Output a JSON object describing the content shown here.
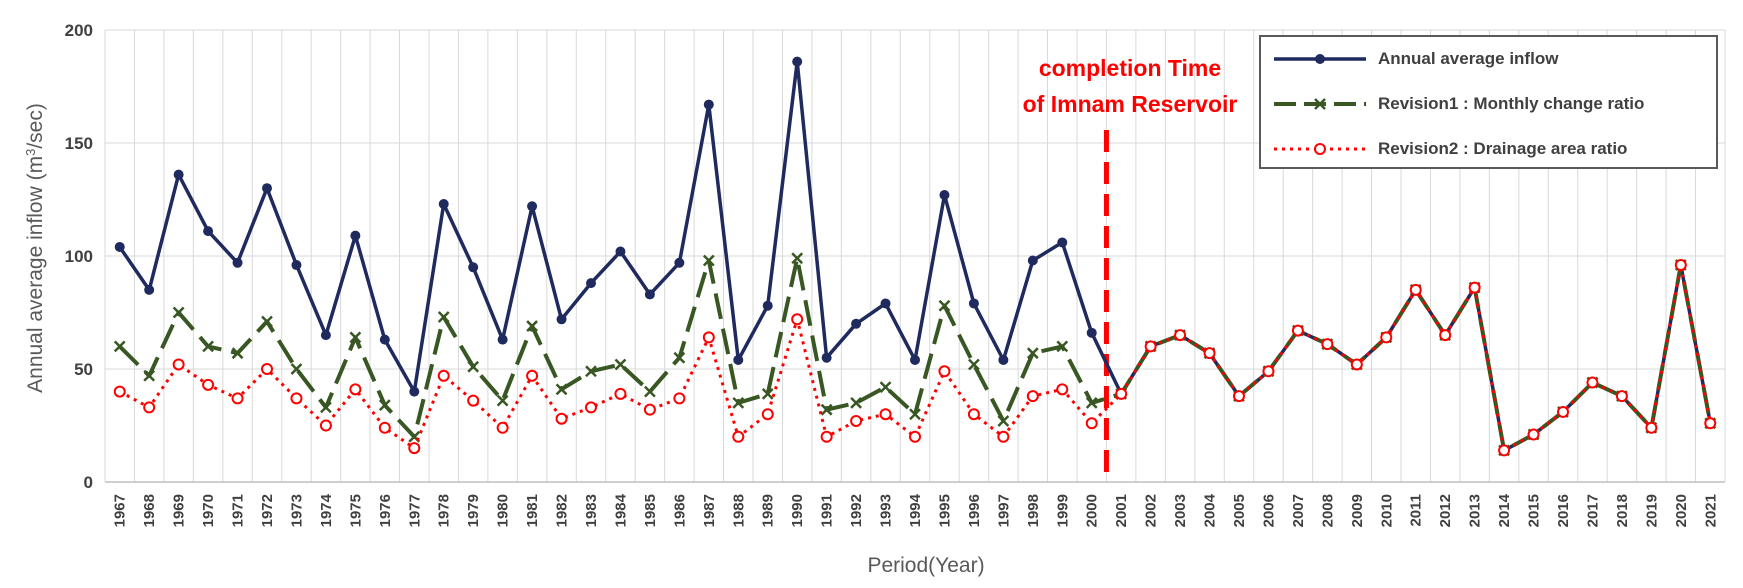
{
  "chart_data": {
    "type": "line",
    "xlabel": "Period(Year)",
    "ylabel_main": "Annual average inflow (m",
    "ylabel_sup": "3",
    "ylabel_tail": "/sec)",
    "ylim": [
      0,
      200
    ],
    "yticks": [
      0,
      50,
      100,
      150,
      200
    ],
    "grid": true,
    "legend_position": "top-right",
    "annotation": {
      "line1": "completion Time",
      "line2": "of Imnam Reservoir",
      "year": "2000.5"
    },
    "categories": [
      "1967",
      "1968",
      "1969",
      "1970",
      "1971",
      "1972",
      "1973",
      "1974",
      "1975",
      "1976",
      "1977",
      "1978",
      "1979",
      "1980",
      "1981",
      "1982",
      "1983",
      "1984",
      "1985",
      "1986",
      "1987",
      "1988",
      "1989",
      "1990",
      "1991",
      "1992",
      "1993",
      "1994",
      "1995",
      "1996",
      "1997",
      "1998",
      "1999",
      "2000",
      "2001",
      "2002",
      "2003",
      "2004",
      "2005",
      "2006",
      "2007",
      "2008",
      "2009",
      "2010",
      "2011",
      "2012",
      "2013",
      "2014",
      "2015",
      "2016",
      "2017",
      "2018",
      "2019",
      "2020",
      "2021"
    ],
    "series": [
      {
        "name": "Annual average inflow",
        "color": "#1f2a5e",
        "marker": "dot",
        "values": [
          104,
          85,
          136,
          111,
          97,
          130,
          96,
          65,
          109,
          63,
          40,
          123,
          95,
          63,
          122,
          72,
          88,
          102,
          83,
          97,
          167,
          54,
          78,
          186,
          55,
          70,
          79,
          54,
          127,
          79,
          54,
          98,
          106,
          66,
          39,
          60,
          65,
          57,
          38,
          49,
          67,
          61,
          52,
          64,
          85,
          65,
          86,
          14,
          21,
          31,
          44,
          38,
          24,
          96,
          26
        ]
      },
      {
        "name": "Revision1 : Monthly change ratio",
        "color": "#385723",
        "marker": "x",
        "values": [
          60,
          47,
          75,
          60,
          57,
          71,
          50,
          33,
          64,
          34,
          20,
          73,
          51,
          36,
          69,
          41,
          49,
          52,
          40,
          55,
          98,
          35,
          39,
          99,
          32,
          35,
          42,
          30,
          78,
          52,
          27,
          57,
          60,
          35,
          39,
          60,
          65,
          57,
          38,
          49,
          67,
          61,
          52,
          64,
          85,
          65,
          86,
          14,
          21,
          31,
          44,
          38,
          24,
          96,
          26
        ]
      },
      {
        "name": "Revision2 : Drainage area ratio",
        "color": "#ff0000",
        "marker": "circle",
        "values": [
          40,
          33,
          52,
          43,
          37,
          50,
          37,
          25,
          41,
          24,
          15,
          47,
          36,
          24,
          47,
          28,
          33,
          39,
          32,
          37,
          64,
          20,
          30,
          72,
          20,
          27,
          30,
          20,
          49,
          30,
          20,
          38,
          41,
          26,
          39,
          60,
          65,
          57,
          38,
          49,
          67,
          61,
          52,
          64,
          85,
          65,
          86,
          14,
          21,
          31,
          44,
          38,
          24,
          96,
          26
        ]
      }
    ]
  }
}
